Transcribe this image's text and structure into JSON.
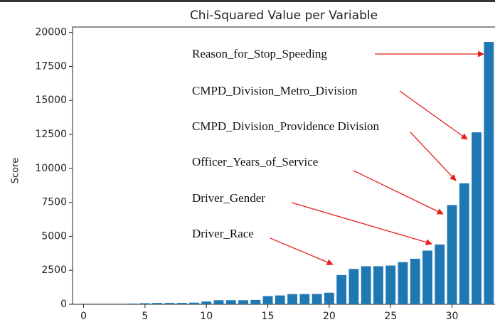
{
  "chart_data": {
    "type": "bar",
    "title": "Chi-Squared Value per Variable",
    "y_label": "Score",
    "x": [
      4,
      5,
      6,
      7,
      8,
      9,
      10,
      11,
      12,
      13,
      14,
      15,
      16,
      17,
      18,
      19,
      20,
      21,
      22,
      23,
      24,
      25,
      26,
      27,
      28,
      29,
      30,
      31,
      32,
      33
    ],
    "values": [
      50,
      80,
      100,
      100,
      100,
      120,
      200,
      300,
      300,
      300,
      320,
      600,
      650,
      750,
      750,
      760,
      850,
      2150,
      2600,
      2800,
      2800,
      2850,
      3100,
      3350,
      3950,
      4400,
      7300,
      8900,
      12650,
      19300
    ],
    "color": "#1f77b4",
    "xlim": [
      -0.9,
      33.5
    ],
    "ylim": [
      0,
      20400
    ],
    "xticks": [
      0,
      5,
      10,
      15,
      20,
      25,
      30
    ],
    "yticks": [
      0,
      2500,
      5000,
      7500,
      10000,
      12500,
      15000,
      17500,
      20000
    ],
    "annotations": [
      "Reason_for_Stop_Speeding",
      "CMPD_Division_Metro_Division",
      "CMPD_Division_Providence Division",
      "Officer_Years_of_Service",
      "Driver_Gender",
      "Driver_Race"
    ],
    "annotation_color": "#e8201c"
  }
}
